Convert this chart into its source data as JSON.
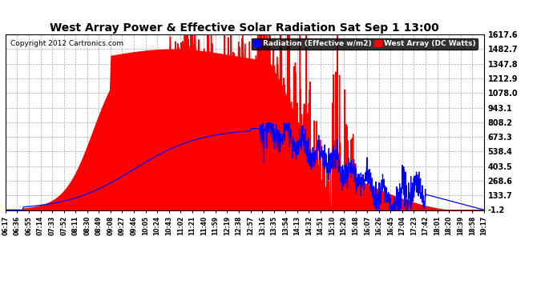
{
  "title": "West Array Power & Effective Solar Radiation Sat Sep 1 13:00",
  "copyright": "Copyright 2012 Cartronics.com",
  "legend_labels": [
    "Radiation (Effective w/m2)",
    "West Array (DC Watts)"
  ],
  "legend_colors": [
    "blue",
    "red"
  ],
  "y_ticks": [
    -1.2,
    133.7,
    268.6,
    403.5,
    538.4,
    673.3,
    808.2,
    943.1,
    1078.0,
    1212.9,
    1347.8,
    1482.7,
    1617.6
  ],
  "y_min": -1.2,
  "y_max": 1617.6,
  "background_color": "#ffffff",
  "grid_color": "#aaaaaa",
  "red_fill_color": "#ff0000",
  "blue_line_color": "#0000ff",
  "x_labels": [
    "06:17",
    "06:36",
    "06:55",
    "07:14",
    "07:33",
    "07:52",
    "08:11",
    "08:30",
    "08:49",
    "09:08",
    "09:27",
    "09:46",
    "10:05",
    "10:24",
    "10:43",
    "11:02",
    "11:21",
    "11:40",
    "11:59",
    "12:19",
    "12:38",
    "12:57",
    "13:16",
    "13:35",
    "13:54",
    "14:13",
    "14:32",
    "14:51",
    "15:10",
    "15:29",
    "15:48",
    "16:07",
    "16:26",
    "16:45",
    "17:04",
    "17:23",
    "17:42",
    "18:01",
    "18:20",
    "18:39",
    "18:58",
    "19:17"
  ]
}
